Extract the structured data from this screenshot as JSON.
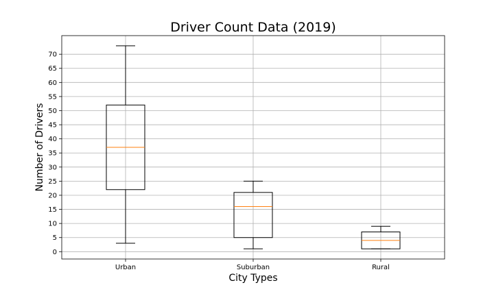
{
  "chart_data": {
    "type": "box",
    "title": "Driver Count Data (2019)",
    "xlabel": "City Types",
    "ylabel": "Number of Drivers",
    "categories": [
      "Urban",
      "Suburban",
      "Rural"
    ],
    "boxes": [
      {
        "category": "Urban",
        "whisker_low": 3,
        "q1": 22,
        "median": 37,
        "q3": 52,
        "whisker_high": 73
      },
      {
        "category": "Suburban",
        "whisker_low": 1,
        "q1": 5,
        "median": 16,
        "q3": 21,
        "whisker_high": 25
      },
      {
        "category": "Rural",
        "whisker_low": 1,
        "q1": 1,
        "median": 4,
        "q3": 7,
        "whisker_high": 9
      }
    ],
    "yticks": [
      0,
      5,
      10,
      15,
      20,
      25,
      30,
      35,
      40,
      45,
      50,
      55,
      60,
      65,
      70
    ],
    "ylim": [
      -2.6,
      76.6
    ],
    "grid": true,
    "colors": {
      "median": "#ff7f0e",
      "grid": "#b0b0b0",
      "box": "#000000"
    }
  }
}
